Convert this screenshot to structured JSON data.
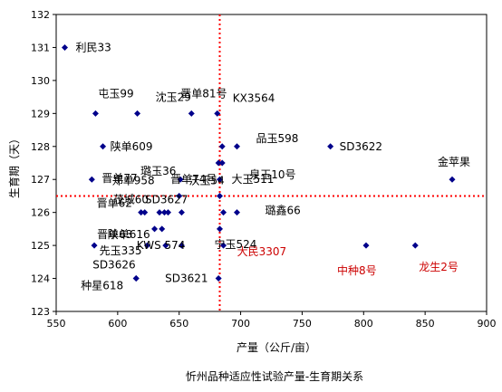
{
  "chart_data": {
    "type": "scatter",
    "title": "",
    "caption": "忻州品种适应性试验产量-生育期关系",
    "xlabel": "产量（公斤/亩）",
    "ylabel": "生育期（天）",
    "xlim": [
      550,
      900
    ],
    "ylim": [
      123,
      132
    ],
    "xticks": [
      550,
      600,
      650,
      700,
      750,
      800,
      850,
      900
    ],
    "yticks": [
      123,
      124,
      125,
      126,
      127,
      128,
      129,
      130,
      131,
      132
    ],
    "grid": false,
    "reference_lines": {
      "x": 683,
      "y": 126.5,
      "color": "#ff0000",
      "style": "dotted"
    },
    "marker_color": "#00008b",
    "highlight_color": "#cc0000",
    "points": [
      {
        "name": "利民33",
        "x": 557,
        "y": 131
      },
      {
        "name": "晋单81号",
        "x": 660,
        "y": 129
      },
      {
        "name": "KX3564",
        "x": 681,
        "y": 129
      },
      {
        "name": "屯玉99",
        "x": 582,
        "y": 129
      },
      {
        "name": "沈玉29",
        "x": 616,
        "y": 129
      },
      {
        "name": "陕单609",
        "x": 588,
        "y": 128
      },
      {
        "name": "品玉598",
        "x": 697,
        "y": 128
      },
      {
        "name": "SD3622",
        "x": 773,
        "y": 128
      },
      {
        "name": "",
        "x": 685,
        "y": 128
      },
      {
        "name": "泉玉10号",
        "x": 685,
        "y": 127.5
      },
      {
        "name": "晋单74号",
        "x": 682,
        "y": 127.5
      },
      {
        "name": "金苹果",
        "x": 872,
        "y": 127
      },
      {
        "name": "晋单77",
        "x": 579,
        "y": 127
      },
      {
        "name": "璐玉36",
        "x": 651,
        "y": 127
      },
      {
        "name": "大玉511",
        "x": 683,
        "y": 127
      },
      {
        "name": "郑单958",
        "x": 650,
        "y": 126.5
      },
      {
        "name": "沃玉54",
        "x": 683,
        "y": 126.5
      },
      {
        "name": "璐鑫66",
        "x": 697,
        "y": 126
      },
      {
        "name": "晋单62",
        "x": 619,
        "y": 126
      },
      {
        "name": "茂城60",
        "x": 622,
        "y": 126
      },
      {
        "name": "SD3627",
        "x": 634,
        "y": 126
      },
      {
        "name": "",
        "x": 638,
        "y": 126
      },
      {
        "name": "",
        "x": 641,
        "y": 126
      },
      {
        "name": "",
        "x": 652,
        "y": 126
      },
      {
        "name": "",
        "x": 686,
        "y": 126
      },
      {
        "name": "陕单616",
        "x": 636,
        "y": 125.5
      },
      {
        "name": "先玉335",
        "x": 630,
        "y": 125.5
      },
      {
        "name": "宁玉524",
        "x": 683,
        "y": 125.5
      },
      {
        "name": "晋单63",
        "x": 581,
        "y": 125
      },
      {
        "name": "KWS 574",
        "x": 639,
        "y": 125
      },
      {
        "name": "",
        "x": 624,
        "y": 125
      },
      {
        "name": "",
        "x": 652,
        "y": 125
      },
      {
        "name": "大民3307",
        "x": 686,
        "y": 125
      },
      {
        "name": "中种8号",
        "x": 802,
        "y": 125
      },
      {
        "name": "龙生2号",
        "x": 842,
        "y": 125
      },
      {
        "name": "SD3626",
        "x": 615,
        "y": 124
      },
      {
        "name": "种星618",
        "x": 615,
        "y": 124
      },
      {
        "name": "SD3621",
        "x": 682,
        "y": 124
      }
    ]
  }
}
